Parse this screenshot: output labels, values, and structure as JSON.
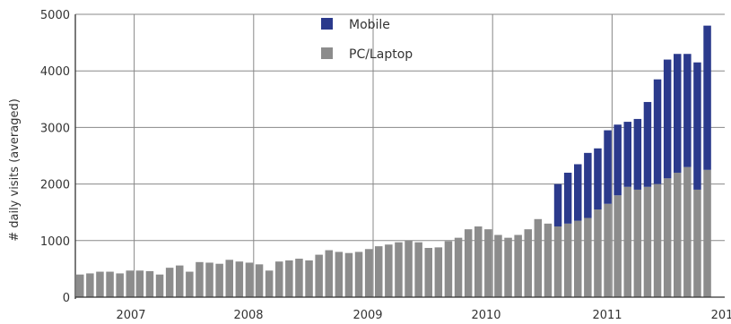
{
  "chart_data": {
    "type": "bar",
    "stacked": true,
    "ylabel": "# daily visits (averaged)",
    "ylim": [
      0,
      5000
    ],
    "yticks": [
      0,
      1000,
      2000,
      3000,
      4000,
      5000
    ],
    "grid": true,
    "legend_position": "top-center",
    "x_tick_labels": [
      "2007",
      "2008",
      "2009",
      "2010",
      "2011",
      "201"
    ],
    "colors": {
      "mobile": "#2b3a8c",
      "pc": "#8c8c8c",
      "grid": "#888888",
      "axis": "#333333"
    },
    "series": [
      {
        "name": "PC/Laptop",
        "values": [
          400,
          420,
          450,
          450,
          420,
          470,
          470,
          460,
          400,
          520,
          560,
          450,
          620,
          610,
          590,
          660,
          630,
          610,
          580,
          470,
          630,
          650,
          680,
          650,
          750,
          830,
          800,
          780,
          800,
          850,
          900,
          930,
          970,
          1000,
          970,
          870,
          880,
          990,
          1050,
          1200,
          1250,
          1200,
          1100,
          1050,
          1100,
          1200,
          1380,
          1300,
          1250,
          1300,
          1350,
          1400,
          1550,
          1650,
          1800,
          1950,
          1900,
          1950,
          2000,
          2100,
          2200,
          2300,
          1900,
          2250
        ]
      },
      {
        "name": "Mobile",
        "values": [
          0,
          0,
          0,
          0,
          0,
          0,
          0,
          0,
          0,
          0,
          0,
          0,
          0,
          0,
          0,
          0,
          0,
          0,
          0,
          0,
          0,
          0,
          0,
          0,
          0,
          0,
          0,
          0,
          0,
          0,
          0,
          0,
          0,
          0,
          0,
          0,
          0,
          0,
          0,
          0,
          0,
          0,
          0,
          0,
          0,
          0,
          0,
          0,
          750,
          900,
          1000,
          1150,
          1080,
          1300,
          1250,
          1150,
          1250,
          1500,
          1850,
          2100,
          2100,
          2000,
          2250,
          2550
        ]
      }
    ]
  }
}
